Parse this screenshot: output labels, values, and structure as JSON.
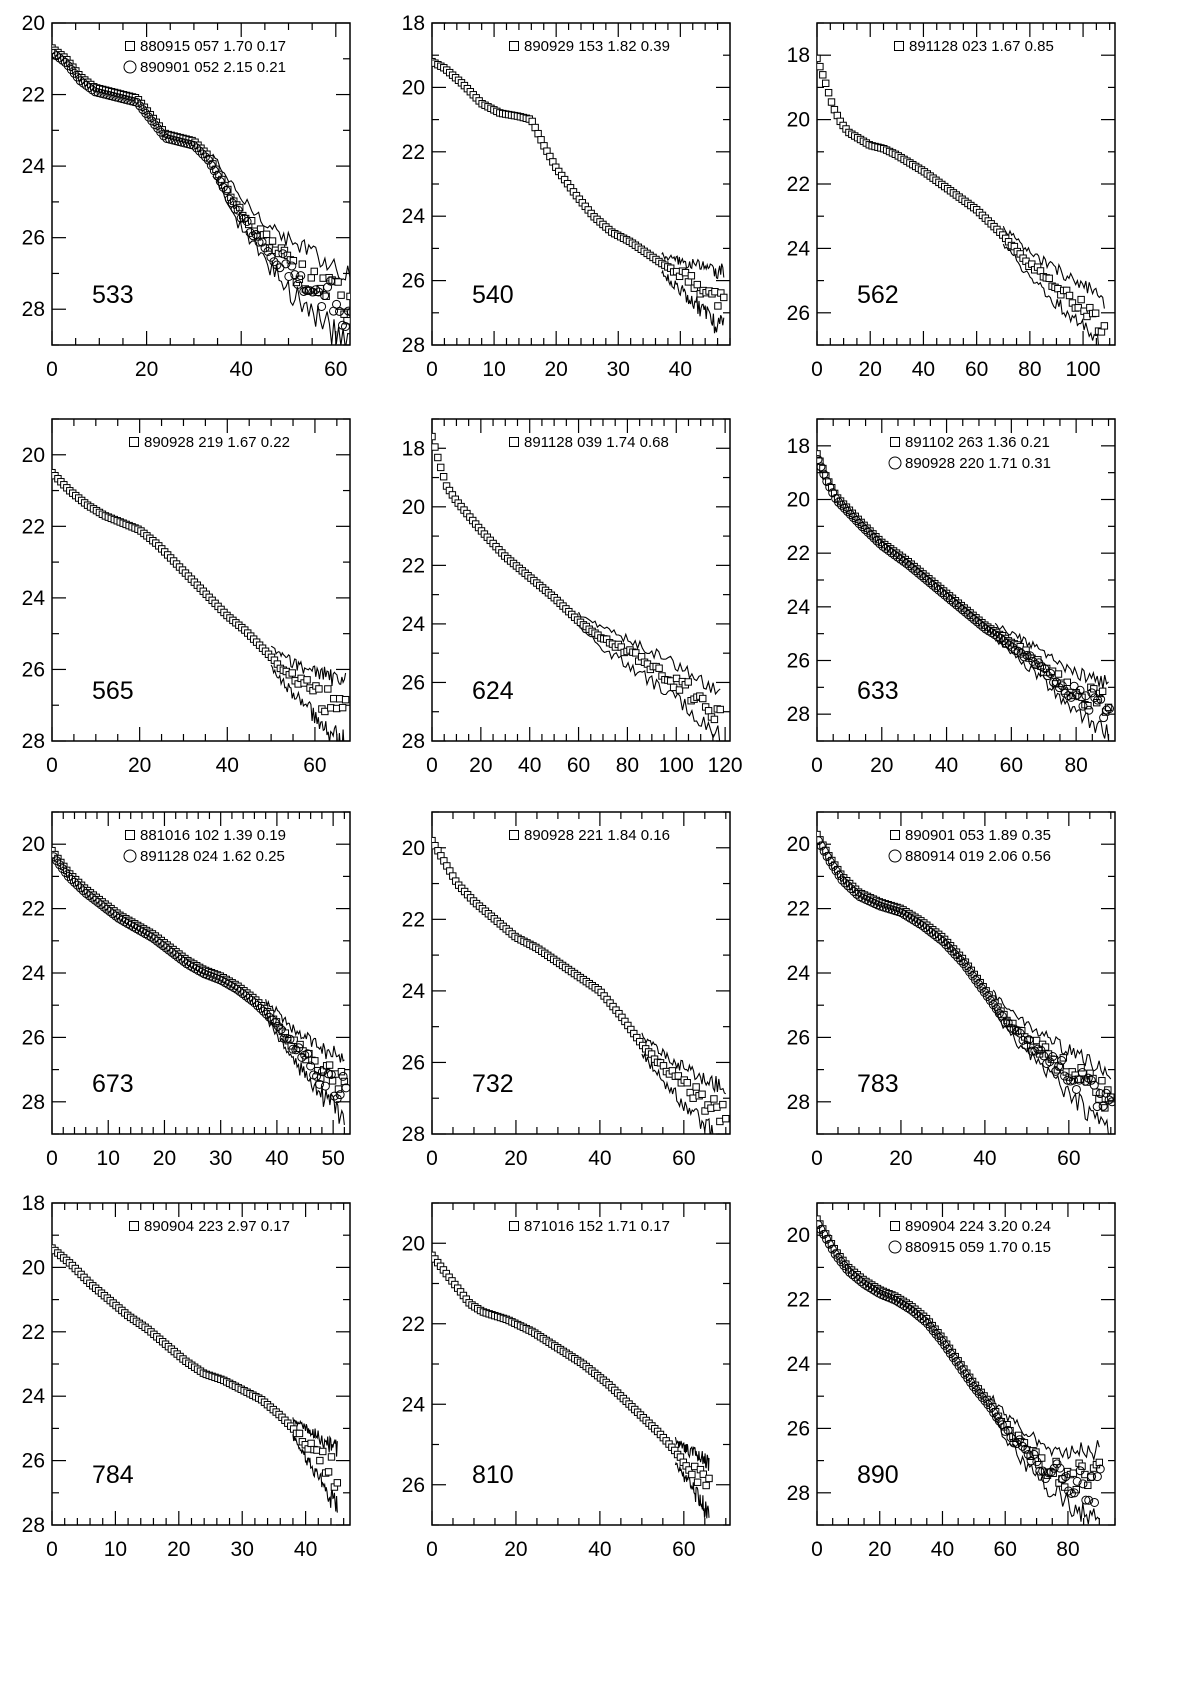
{
  "chart_data": [
    {
      "type": "scatter",
      "galaxy": "533",
      "xlim": [
        0,
        63
      ],
      "ylim": [
        29,
        20
      ],
      "xticks": [
        0,
        20,
        40,
        60
      ],
      "yticks": [
        20,
        22,
        24,
        26,
        28
      ],
      "legend": [
        {
          "marker": "square",
          "text": "880915  057  1.70  0.17"
        },
        {
          "marker": "circle",
          "text": "890901  052  2.15  0.21"
        }
      ],
      "profile": [
        [
          0,
          20.7
        ],
        [
          3,
          21.0
        ],
        [
          6,
          21.5
        ],
        [
          9,
          21.8
        ],
        [
          12,
          21.9
        ],
        [
          15,
          22.0
        ],
        [
          18,
          22.1
        ],
        [
          21,
          22.6
        ],
        [
          24,
          23.1
        ],
        [
          27,
          23.2
        ],
        [
          30,
          23.3
        ],
        [
          33,
          23.7
        ],
        [
          36,
          24.4
        ],
        [
          39,
          25.1
        ],
        [
          42,
          25.6
        ],
        [
          45,
          26.0
        ],
        [
          48,
          26.4
        ],
        [
          51,
          26.8
        ],
        [
          54,
          27.0
        ],
        [
          57,
          27.3
        ],
        [
          60,
          27.6
        ],
        [
          63,
          27.9
        ]
      ],
      "noise_start": 34,
      "noise_amp": 0.6
    },
    {
      "type": "scatter",
      "galaxy": "540",
      "xlim": [
        0,
        48
      ],
      "ylim": [
        28,
        18
      ],
      "xticks": [
        0,
        10,
        20,
        30,
        40
      ],
      "yticks": [
        18,
        20,
        22,
        24,
        26,
        28
      ],
      "legend": [
        {
          "marker": "square",
          "text": "890929  153  1.82  0.39"
        }
      ],
      "profile": [
        [
          0,
          19.2
        ],
        [
          2,
          19.4
        ],
        [
          5,
          19.9
        ],
        [
          8,
          20.5
        ],
        [
          11,
          20.8
        ],
        [
          14,
          20.9
        ],
        [
          16,
          21.0
        ],
        [
          18,
          21.8
        ],
        [
          20,
          22.5
        ],
        [
          23,
          23.3
        ],
        [
          26,
          24.0
        ],
        [
          29,
          24.5
        ],
        [
          32,
          24.8
        ],
        [
          35,
          25.2
        ],
        [
          38,
          25.6
        ],
        [
          41,
          25.9
        ],
        [
          44,
          26.2
        ],
        [
          47,
          26.5
        ]
      ],
      "noise_start": 37,
      "noise_amp": 0.5
    },
    {
      "type": "scatter",
      "galaxy": "562",
      "xlim": [
        0,
        112
      ],
      "ylim": [
        27,
        17
      ],
      "xticks": [
        0,
        20,
        40,
        60,
        80,
        100
      ],
      "yticks": [
        18,
        20,
        22,
        24,
        26
      ],
      "legend": [
        {
          "marker": "square",
          "text": "891128  023  1.67  0.85"
        }
      ],
      "profile": [
        [
          0,
          18.1
        ],
        [
          3,
          18.8
        ],
        [
          6,
          19.6
        ],
        [
          9,
          20.1
        ],
        [
          12,
          20.4
        ],
        [
          16,
          20.6
        ],
        [
          20,
          20.8
        ],
        [
          25,
          20.9
        ],
        [
          30,
          21.1
        ],
        [
          40,
          21.6
        ],
        [
          50,
          22.2
        ],
        [
          60,
          22.8
        ],
        [
          70,
          23.6
        ],
        [
          80,
          24.5
        ],
        [
          90,
          25.1
        ],
        [
          100,
          25.7
        ],
        [
          108,
          26.3
        ]
      ],
      "noise_start": 70,
      "noise_amp": 0.4
    },
    {
      "type": "scatter",
      "galaxy": "565",
      "xlim": [
        0,
        68
      ],
      "ylim": [
        28,
        19
      ],
      "xticks": [
        0,
        20,
        40,
        60
      ],
      "yticks": [
        20,
        22,
        24,
        26,
        28
      ],
      "legend": [
        {
          "marker": "square",
          "text": "890928  219  1.67  0.22"
        }
      ],
      "profile": [
        [
          0,
          20.5
        ],
        [
          4,
          21.0
        ],
        [
          8,
          21.4
        ],
        [
          12,
          21.7
        ],
        [
          16,
          21.9
        ],
        [
          20,
          22.1
        ],
        [
          24,
          22.5
        ],
        [
          28,
          23.0
        ],
        [
          32,
          23.5
        ],
        [
          36,
          24.0
        ],
        [
          40,
          24.5
        ],
        [
          44,
          24.9
        ],
        [
          48,
          25.4
        ],
        [
          52,
          25.9
        ],
        [
          56,
          26.3
        ],
        [
          60,
          26.6
        ],
        [
          64,
          26.9
        ],
        [
          67,
          27.1
        ]
      ],
      "noise_start": 50,
      "noise_amp": 0.5
    },
    {
      "type": "scatter",
      "galaxy": "624",
      "xlim": [
        0,
        122
      ],
      "ylim": [
        28,
        17
      ],
      "xticks": [
        0,
        20,
        40,
        60,
        80,
        100,
        120
      ],
      "yticks": [
        18,
        20,
        22,
        24,
        26,
        28
      ],
      "legend": [
        {
          "marker": "square",
          "text": "891128  039  1.74  0.68"
        }
      ],
      "profile": [
        [
          0,
          17.6
        ],
        [
          3,
          18.5
        ],
        [
          6,
          19.3
        ],
        [
          10,
          19.8
        ],
        [
          14,
          20.2
        ],
        [
          20,
          20.8
        ],
        [
          30,
          21.7
        ],
        [
          40,
          22.4
        ],
        [
          50,
          23.1
        ],
        [
          60,
          23.9
        ],
        [
          70,
          24.5
        ],
        [
          80,
          24.9
        ],
        [
          90,
          25.4
        ],
        [
          100,
          25.9
        ],
        [
          110,
          26.5
        ],
        [
          118,
          27.0
        ]
      ],
      "noise_start": 60,
      "noise_amp": 0.4
    },
    {
      "type": "scatter",
      "galaxy": "633",
      "xlim": [
        0,
        92
      ],
      "ylim": [
        29,
        17
      ],
      "xticks": [
        0,
        20,
        40,
        60,
        80
      ],
      "yticks": [
        18,
        20,
        22,
        24,
        26,
        28
      ],
      "legend": [
        {
          "marker": "square",
          "text": "891102  263  1.36  0.21"
        },
        {
          "marker": "circle",
          "text": "890928  220  1.71  0.31"
        }
      ],
      "profile": [
        [
          0,
          18.3
        ],
        [
          3,
          19.2
        ],
        [
          6,
          19.9
        ],
        [
          10,
          20.4
        ],
        [
          14,
          20.9
        ],
        [
          20,
          21.6
        ],
        [
          28,
          22.3
        ],
        [
          36,
          23.1
        ],
        [
          44,
          23.9
        ],
        [
          52,
          24.7
        ],
        [
          60,
          25.3
        ],
        [
          68,
          26.0
        ],
        [
          76,
          26.8
        ],
        [
          84,
          27.3
        ],
        [
          90,
          27.6
        ]
      ],
      "noise_start": 55,
      "noise_amp": 0.5
    },
    {
      "type": "scatter",
      "galaxy": "673",
      "xlim": [
        0,
        53
      ],
      "ylim": [
        29,
        19
      ],
      "xticks": [
        0,
        10,
        20,
        30,
        40,
        50
      ],
      "yticks": [
        20,
        22,
        24,
        26,
        28
      ],
      "legend": [
        {
          "marker": "square",
          "text": "881016  102  1.39  0.19"
        },
        {
          "marker": "circle",
          "text": "891128  024  1.62  0.25"
        }
      ],
      "profile": [
        [
          0,
          20.2
        ],
        [
          3,
          20.9
        ],
        [
          6,
          21.4
        ],
        [
          9,
          21.8
        ],
        [
          12,
          22.2
        ],
        [
          15,
          22.5
        ],
        [
          18,
          22.8
        ],
        [
          21,
          23.2
        ],
        [
          24,
          23.6
        ],
        [
          27,
          23.9
        ],
        [
          30,
          24.1
        ],
        [
          33,
          24.4
        ],
        [
          36,
          24.8
        ],
        [
          39,
          25.3
        ],
        [
          42,
          26.0
        ],
        [
          45,
          26.5
        ],
        [
          48,
          27.0
        ],
        [
          52,
          27.4
        ]
      ],
      "noise_start": 38,
      "noise_amp": 0.5
    },
    {
      "type": "scatter",
      "galaxy": "732",
      "xlim": [
        0,
        71
      ],
      "ylim": [
        28,
        19
      ],
      "xticks": [
        0,
        20,
        40,
        60
      ],
      "yticks": [
        20,
        22,
        24,
        26,
        28
      ],
      "legend": [
        {
          "marker": "square",
          "text": "890928  221  1.84  0.16"
        }
      ],
      "profile": [
        [
          0,
          19.8
        ],
        [
          3,
          20.4
        ],
        [
          6,
          21.0
        ],
        [
          10,
          21.5
        ],
        [
          15,
          22.0
        ],
        [
          20,
          22.5
        ],
        [
          25,
          22.8
        ],
        [
          30,
          23.2
        ],
        [
          35,
          23.6
        ],
        [
          40,
          24.0
        ],
        [
          45,
          24.7
        ],
        [
          50,
          25.5
        ],
        [
          55,
          26.1
        ],
        [
          60,
          26.6
        ],
        [
          65,
          27.0
        ],
        [
          70,
          27.4
        ]
      ],
      "noise_start": 50,
      "noise_amp": 0.4
    },
    {
      "type": "scatter",
      "galaxy": "783",
      "xlim": [
        0,
        71
      ],
      "ylim": [
        29,
        19
      ],
      "xticks": [
        0,
        20,
        40,
        60
      ],
      "yticks": [
        20,
        22,
        24,
        26,
        28
      ],
      "legend": [
        {
          "marker": "square",
          "text": "890901  053  1.89  0.35"
        },
        {
          "marker": "circle",
          "text": "880914  019  2.06  0.56"
        }
      ],
      "profile": [
        [
          0,
          19.7
        ],
        [
          3,
          20.4
        ],
        [
          6,
          21.0
        ],
        [
          10,
          21.5
        ],
        [
          15,
          21.8
        ],
        [
          20,
          22.0
        ],
        [
          25,
          22.4
        ],
        [
          30,
          22.9
        ],
        [
          35,
          23.6
        ],
        [
          40,
          24.5
        ],
        [
          45,
          25.4
        ],
        [
          50,
          26.0
        ],
        [
          55,
          26.5
        ],
        [
          60,
          27.0
        ],
        [
          65,
          27.4
        ],
        [
          70,
          27.8
        ]
      ],
      "noise_start": 42,
      "noise_amp": 0.5
    },
    {
      "type": "scatter",
      "galaxy": "784",
      "xlim": [
        0,
        47
      ],
      "ylim": [
        28,
        18
      ],
      "xticks": [
        0,
        10,
        20,
        30,
        40
      ],
      "yticks": [
        18,
        20,
        22,
        24,
        26,
        28
      ],
      "legend": [
        {
          "marker": "square",
          "text": "890904  223  2.97  0.17"
        }
      ],
      "profile": [
        [
          0,
          19.4
        ],
        [
          3,
          19.9
        ],
        [
          6,
          20.5
        ],
        [
          9,
          21.0
        ],
        [
          12,
          21.5
        ],
        [
          15,
          21.9
        ],
        [
          18,
          22.4
        ],
        [
          21,
          22.9
        ],
        [
          24,
          23.3
        ],
        [
          27,
          23.5
        ],
        [
          30,
          23.8
        ],
        [
          33,
          24.1
        ],
        [
          36,
          24.6
        ],
        [
          39,
          25.2
        ],
        [
          42,
          25.8
        ],
        [
          45,
          26.4
        ]
      ],
      "noise_start": 38,
      "noise_amp": 0.5
    },
    {
      "type": "scatter",
      "galaxy": "810",
      "xlim": [
        0,
        71
      ],
      "ylim": [
        27,
        19
      ],
      "xticks": [
        0,
        20,
        40,
        60
      ],
      "yticks": [
        20,
        22,
        24,
        26
      ],
      "legend": [
        {
          "marker": "square",
          "text": "871016  152  1.71  0.17"
        }
      ],
      "profile": [
        [
          0,
          20.3
        ],
        [
          3,
          20.7
        ],
        [
          6,
          21.1
        ],
        [
          9,
          21.5
        ],
        [
          12,
          21.7
        ],
        [
          18,
          21.9
        ],
        [
          24,
          22.2
        ],
        [
          30,
          22.6
        ],
        [
          36,
          23.0
        ],
        [
          42,
          23.5
        ],
        [
          48,
          24.1
        ],
        [
          54,
          24.7
        ],
        [
          60,
          25.4
        ],
        [
          66,
          26.0
        ]
      ],
      "noise_start": 58,
      "noise_amp": 0.3
    },
    {
      "type": "scatter",
      "galaxy": "890",
      "xlim": [
        0,
        95
      ],
      "ylim": [
        29,
        19
      ],
      "xticks": [
        0,
        20,
        40,
        60,
        80
      ],
      "yticks": [
        20,
        22,
        24,
        26,
        28
      ],
      "legend": [
        {
          "marker": "square",
          "text": "890904  224  3.20  0.24"
        },
        {
          "marker": "circle",
          "text": "880915  059  1.70  0.15"
        }
      ],
      "profile": [
        [
          0,
          19.5
        ],
        [
          3,
          20.0
        ],
        [
          6,
          20.5
        ],
        [
          10,
          21.0
        ],
        [
          15,
          21.4
        ],
        [
          20,
          21.7
        ],
        [
          25,
          21.9
        ],
        [
          30,
          22.2
        ],
        [
          35,
          22.6
        ],
        [
          40,
          23.2
        ],
        [
          45,
          23.9
        ],
        [
          50,
          24.6
        ],
        [
          55,
          25.2
        ],
        [
          60,
          25.9
        ],
        [
          65,
          26.4
        ],
        [
          70,
          26.9
        ],
        [
          75,
          27.2
        ],
        [
          80,
          27.4
        ],
        [
          85,
          27.5
        ],
        [
          90,
          27.5
        ]
      ],
      "noise_start": 55,
      "noise_amp": 0.6
    }
  ]
}
